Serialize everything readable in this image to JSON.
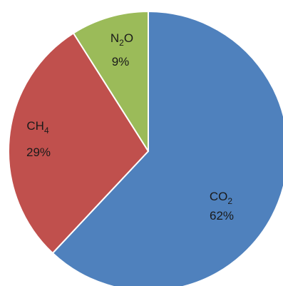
{
  "chart_data": {
    "type": "pie",
    "start": "12 o'clock",
    "direction": "clockwise",
    "slices": [
      {
        "name": "CO",
        "sub": "2",
        "label": "62%",
        "value": 62,
        "color": "#4f81bd"
      },
      {
        "name": "CH",
        "sub": "4",
        "label": "29%",
        "value": 29,
        "color": "#c0504d"
      },
      {
        "name": "N",
        "sub": "2",
        "name_tail": "O",
        "label": "9%",
        "value": 9,
        "color": "#9bbb59"
      }
    ]
  }
}
